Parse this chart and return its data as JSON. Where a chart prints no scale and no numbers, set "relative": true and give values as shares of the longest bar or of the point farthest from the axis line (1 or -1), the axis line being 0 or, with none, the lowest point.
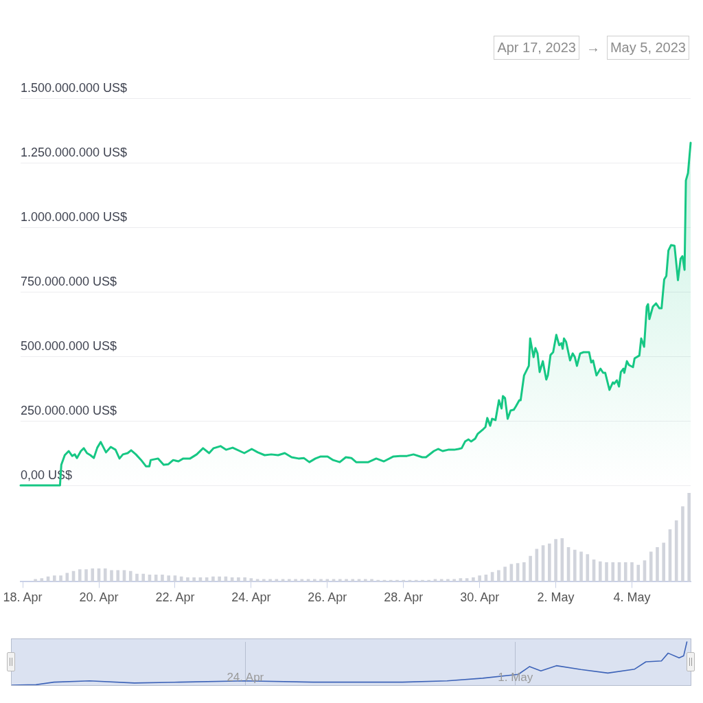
{
  "chart_data": [
    {
      "type": "area",
      "annotations": [
        "Apr 17, 2023",
        "→",
        "May 5, 2023"
      ],
      "color": "#16c784",
      "xlim": [
        "2023-04-17T22:40",
        "2023-05-05T13:00"
      ],
      "ylim": [
        0,
        1500000000
      ],
      "yticks": [
        {
          "value": 0,
          "label": "0,00 US$"
        },
        {
          "value": 250000000,
          "label": "250.000.000 US$"
        },
        {
          "value": 500000000,
          "label": "500.000.000 US$"
        },
        {
          "value": 750000000,
          "label": "750.000.000 US$"
        },
        {
          "value": 1000000000,
          "label": "1.000.000.000 US$"
        },
        {
          "value": 1250000000,
          "label": "1.250.000.000 US$"
        },
        {
          "value": 1500000000,
          "label": "1.500.000.000 US$"
        }
      ],
      "grid": "y",
      "marker": "none",
      "tick_labels": "y",
      "x": [
        "2023-04-17T22:40",
        "2023-04-18T23:30",
        "2023-04-19T00:20",
        "2023-04-19T02:30",
        "2023-04-19T05:00",
        "2023-04-19T07:10",
        "2023-04-19T08:50",
        "2023-04-19T10:10",
        "2023-04-19T12:40",
        "2023-04-19T14:30",
        "2023-04-19T16:30",
        "2023-04-19T18:40",
        "2023-04-19T20:50",
        "2023-04-19T23:00",
        "2023-04-20T01:10",
        "2023-04-20T04:30",
        "2023-04-20T07:30",
        "2023-04-20T10:30",
        "2023-04-20T13:00",
        "2023-04-20T15:10",
        "2023-04-20T18:10",
        "2023-04-20T20:20",
        "2023-04-20T23:20",
        "2023-04-21T02:40",
        "2023-04-21T05:40",
        "2023-04-21T07:50",
        "2023-04-21T08:40",
        "2023-04-21T13:20",
        "2023-04-21T16:50",
        "2023-04-21T19:50",
        "2023-04-21T22:50",
        "2023-04-22T02:10",
        "2023-04-22T05:10",
        "2023-04-22T09:30",
        "2023-04-22T13:40",
        "2023-04-22T17:40",
        "2023-04-22T21:30",
        "2023-04-23T00:20",
        "2023-04-23T04:40",
        "2023-04-23T08:10",
        "2023-04-23T12:20",
        "2023-04-23T19:40",
        "2023-04-24T00:20",
        "2023-04-24T04:10",
        "2023-04-24T08:30",
        "2023-04-24T12:40",
        "2023-04-24T17:00",
        "2023-04-24T21:10",
        "2023-04-25T01:30",
        "2023-04-25T05:50",
        "2023-04-25T09:10",
        "2023-04-25T12:40",
        "2023-04-25T16:30",
        "2023-04-25T19:50",
        "2023-04-26T00:10",
        "2023-04-26T03:40",
        "2023-04-26T07:50",
        "2023-04-26T11:40",
        "2023-04-26T15:10",
        "2023-04-26T18:10",
        "2023-04-26T21:30",
        "2023-04-27T01:50",
        "2023-04-27T06:50",
        "2023-04-27T11:40",
        "2023-04-27T17:40",
        "2023-04-27T21:50",
        "2023-04-28T02:10",
        "2023-04-28T06:20",
        "2023-04-28T11:50",
        "2023-04-28T14:10",
        "2023-04-28T19:10",
        "2023-04-28T21:50",
        "2023-04-29T00:40",
        "2023-04-29T04:10",
        "2023-04-29T08:00",
        "2023-04-29T10:40",
        "2023-04-29T12:40",
        "2023-04-29T14:50",
        "2023-04-29T17:00",
        "2023-04-29T18:40",
        "2023-04-29T21:10",
        "2023-04-29T22:50",
        "2023-04-30T02:20",
        "2023-04-30T03:40",
        "2023-04-30T04:50",
        "2023-04-30T06:40",
        "2023-04-30T07:50",
        "2023-04-30T10:00",
        "2023-04-30T12:10",
        "2023-04-30T13:50",
        "2023-04-30T14:40",
        "2023-04-30T16:00",
        "2023-04-30T17:40",
        "2023-04-30T19:30",
        "2023-04-30T21:30",
        "2023-04-30T22:50",
        "2023-05-01T01:00",
        "2023-05-01T01:50",
        "2023-05-01T04:00",
        "2023-05-01T07:00",
        "2023-05-01T07:50",
        "2023-05-01T09:10",
        "2023-05-01T10:00",
        "2023-05-01T11:10",
        "2023-05-01T12:30",
        "2023-05-01T13:50",
        "2023-05-01T15:50",
        "2023-05-01T18:00",
        "2023-05-01T19:00",
        "2023-05-01T20:40",
        "2023-05-01T22:20",
        "2023-05-02T00:20",
        "2023-05-02T02:10",
        "2023-05-02T03:30",
        "2023-05-02T04:20",
        "2023-05-02T05:10",
        "2023-05-02T06:30",
        "2023-05-02T09:00",
        "2023-05-02T10:40",
        "2023-05-02T12:00",
        "2023-05-02T13:20",
        "2023-05-02T15:20",
        "2023-05-02T17:30",
        "2023-05-02T21:00",
        "2023-05-02T22:20",
        "2023-05-02T23:30",
        "2023-05-03T01:40",
        "2023-05-03T04:10",
        "2023-05-03T05:50",
        "2023-05-03T07:10",
        "2023-05-03T09:50",
        "2023-05-03T12:00",
        "2023-05-03T12:50",
        "2023-05-03T14:30",
        "2023-05-03T15:50",
        "2023-05-03T17:00",
        "2023-05-03T18:40",
        "2023-05-03T19:10",
        "2023-05-03T20:50",
        "2023-05-03T22:10",
        "2023-05-04T00:40",
        "2023-05-04T01:40",
        "2023-05-04T04:40",
        "2023-05-04T05:50",
        "2023-05-04T07:40",
        "2023-05-04T09:20",
        "2023-05-04T10:10",
        "2023-05-04T11:00",
        "2023-05-04T13:10",
        "2023-05-04T15:10",
        "2023-05-04T17:20",
        "2023-05-04T18:40",
        "2023-05-04T20:20",
        "2023-05-04T21:40",
        "2023-05-04T23:00",
        "2023-05-05T00:40",
        "2023-05-05T02:50",
        "2023-05-05T03:40",
        "2023-05-05T05:00",
        "2023-05-05T06:40",
        "2023-05-05T07:50",
        "2023-05-05T09:10",
        "2023-05-05T10:00",
        "2023-05-05T11:20",
        "2023-05-05T13:00"
      ],
      "values": [
        0,
        0,
        80000000,
        117000000,
        133000000,
        114000000,
        120000000,
        106000000,
        133000000,
        144000000,
        125000000,
        117000000,
        106000000,
        146000000,
        168000000,
        128000000,
        149000000,
        138000000,
        104000000,
        120000000,
        125000000,
        136000000,
        120000000,
        98000000,
        74000000,
        74000000,
        98000000,
        104000000,
        80000000,
        82000000,
        98000000,
        93000000,
        104000000,
        104000000,
        120000000,
        144000000,
        125000000,
        144000000,
        152000000,
        138000000,
        146000000,
        125000000,
        141000000,
        128000000,
        117000000,
        120000000,
        117000000,
        125000000,
        109000000,
        104000000,
        106000000,
        90000000,
        104000000,
        112000000,
        112000000,
        98000000,
        90000000,
        109000000,
        106000000,
        90000000,
        90000000,
        90000000,
        104000000,
        93000000,
        112000000,
        114000000,
        114000000,
        120000000,
        109000000,
        109000000,
        133000000,
        141000000,
        133000000,
        138000000,
        138000000,
        141000000,
        144000000,
        170000000,
        178000000,
        170000000,
        181000000,
        200000000,
        218000000,
        226000000,
        261000000,
        231000000,
        258000000,
        253000000,
        330000000,
        298000000,
        346000000,
        338000000,
        258000000,
        290000000,
        293000000,
        306000000,
        330000000,
        330000000,
        426000000,
        463000000,
        569000000,
        524000000,
        497000000,
        532000000,
        511000000,
        439000000,
        481000000,
        410000000,
        426000000,
        505000000,
        516000000,
        583000000,
        543000000,
        551000000,
        529000000,
        569000000,
        556000000,
        484000000,
        511000000,
        497000000,
        463000000,
        511000000,
        516000000,
        516000000,
        476000000,
        484000000,
        426000000,
        452000000,
        436000000,
        436000000,
        370000000,
        399000000,
        394000000,
        407000000,
        383000000,
        439000000,
        452000000,
        436000000,
        481000000,
        466000000,
        458000000,
        492000000,
        503000000,
        569000000,
        537000000,
        692000000,
        702000000,
        644000000,
        692000000,
        705000000,
        686000000,
        686000000,
        798000000,
        811000000,
        910000000,
        931000000,
        928000000,
        878000000,
        795000000,
        878000000,
        888000000,
        835000000,
        1181000000,
        1210000000,
        1327000000
      ]
    },
    {
      "type": "bar",
      "relative": true,
      "color": "#d1d4dc",
      "xlim": [
        "2023-04-17T22:40",
        "2023-05-05T13:00"
      ],
      "tick_labels": "x",
      "xticks": [
        {
          "value": "2023-04-18",
          "label": "18. Apr"
        },
        {
          "value": "2023-04-20",
          "label": "20. Apr"
        },
        {
          "value": "2023-04-22",
          "label": "22. Apr"
        },
        {
          "value": "2023-04-24",
          "label": "24. Apr"
        },
        {
          "value": "2023-04-26",
          "label": "26. Apr"
        },
        {
          "value": "2023-04-28",
          "label": "28. Apr"
        },
        {
          "value": "2023-04-30",
          "label": "30. Apr"
        },
        {
          "value": "2023-05-02",
          "label": "2. May"
        },
        {
          "value": "2023-05-04",
          "label": "4. May"
        }
      ],
      "x": [
        "2023-04-18T08:00",
        "2023-04-18T12:00",
        "2023-04-18T16:00",
        "2023-04-18T20:00",
        "2023-04-19T00:00",
        "2023-04-19T04:00",
        "2023-04-19T08:00",
        "2023-04-19T12:00",
        "2023-04-19T16:00",
        "2023-04-19T20:00",
        "2023-04-20T00:00",
        "2023-04-20T04:00",
        "2023-04-20T08:00",
        "2023-04-20T12:00",
        "2023-04-20T16:00",
        "2023-04-20T20:00",
        "2023-04-21T00:00",
        "2023-04-21T04:00",
        "2023-04-21T08:00",
        "2023-04-21T12:00",
        "2023-04-21T16:00",
        "2023-04-21T20:00",
        "2023-04-22T00:00",
        "2023-04-22T04:00",
        "2023-04-22T08:00",
        "2023-04-22T12:00",
        "2023-04-22T16:00",
        "2023-04-22T20:00",
        "2023-04-23T00:00",
        "2023-04-23T04:00",
        "2023-04-23T08:00",
        "2023-04-23T12:00",
        "2023-04-23T16:00",
        "2023-04-23T20:00",
        "2023-04-24T00:00",
        "2023-04-24T04:00",
        "2023-04-24T08:00",
        "2023-04-24T12:00",
        "2023-04-24T16:00",
        "2023-04-24T20:00",
        "2023-04-25T00:00",
        "2023-04-25T04:00",
        "2023-04-25T08:00",
        "2023-04-25T12:00",
        "2023-04-25T16:00",
        "2023-04-25T20:00",
        "2023-04-26T00:00",
        "2023-04-26T04:00",
        "2023-04-26T08:00",
        "2023-04-26T12:00",
        "2023-04-26T16:00",
        "2023-04-26T20:00",
        "2023-04-27T00:00",
        "2023-04-27T04:00",
        "2023-04-27T08:00",
        "2023-04-27T12:00",
        "2023-04-27T16:00",
        "2023-04-27T20:00",
        "2023-04-28T00:00",
        "2023-04-28T04:00",
        "2023-04-28T08:00",
        "2023-04-28T12:00",
        "2023-04-28T16:00",
        "2023-04-28T20:00",
        "2023-04-29T00:00",
        "2023-04-29T04:00",
        "2023-04-29T08:00",
        "2023-04-29T12:00",
        "2023-04-29T16:00",
        "2023-04-29T20:00",
        "2023-04-30T00:00",
        "2023-04-30T04:00",
        "2023-04-30T08:00",
        "2023-04-30T12:00",
        "2023-04-30T16:00",
        "2023-04-30T20:00",
        "2023-05-01T00:00",
        "2023-05-01T04:00",
        "2023-05-01T08:00",
        "2023-05-01T12:00",
        "2023-05-01T16:00",
        "2023-05-01T20:00",
        "2023-05-02T00:00",
        "2023-05-02T04:00",
        "2023-05-02T08:00",
        "2023-05-02T12:00",
        "2023-05-02T16:00",
        "2023-05-02T20:00",
        "2023-05-03T00:00",
        "2023-05-03T04:00",
        "2023-05-03T08:00",
        "2023-05-03T12:00",
        "2023-05-03T16:00",
        "2023-05-03T20:00",
        "2023-05-04T00:00",
        "2023-05-04T04:00",
        "2023-05-04T08:00",
        "2023-05-04T12:00",
        "2023-05-04T16:00",
        "2023-05-04T20:00",
        "2023-05-05T00:00",
        "2023-05-05T04:00",
        "2023-05-05T08:00",
        "2023-05-05T12:00"
      ],
      "values": [
        0.03,
        0.04,
        0.06,
        0.07,
        0.07,
        0.1,
        0.12,
        0.14,
        0.14,
        0.15,
        0.15,
        0.15,
        0.13,
        0.13,
        0.13,
        0.12,
        0.09,
        0.09,
        0.08,
        0.08,
        0.08,
        0.07,
        0.07,
        0.06,
        0.05,
        0.05,
        0.05,
        0.05,
        0.06,
        0.06,
        0.06,
        0.05,
        0.05,
        0.05,
        0.04,
        0.03,
        0.03,
        0.03,
        0.03,
        0.03,
        0.03,
        0.03,
        0.03,
        0.03,
        0.03,
        0.03,
        0.03,
        0.03,
        0.03,
        0.03,
        0.03,
        0.03,
        0.03,
        0.03,
        0.02,
        0.02,
        0.02,
        0.02,
        0.02,
        0.02,
        0.02,
        0.02,
        0.02,
        0.03,
        0.03,
        0.03,
        0.03,
        0.04,
        0.04,
        0.05,
        0.07,
        0.08,
        0.11,
        0.13,
        0.17,
        0.2,
        0.21,
        0.22,
        0.29,
        0.37,
        0.41,
        0.43,
        0.48,
        0.49,
        0.39,
        0.36,
        0.34,
        0.31,
        0.25,
        0.23,
        0.22,
        0.22,
        0.22,
        0.22,
        0.22,
        0.19,
        0.24,
        0.34,
        0.39,
        0.44,
        0.59,
        0.69,
        0.85,
        1
      ]
    },
    {
      "type": "line",
      "relative": true,
      "color": "#3d63b8",
      "xlim": [
        "2023-04-17T22:40",
        "2023-05-05T13:00"
      ],
      "grid": "x",
      "marker": "none",
      "tick_labels": "x",
      "xticks": [
        {
          "value": "2023-04-24",
          "label": "24. Apr"
        },
        {
          "value": "2023-05-01",
          "label": "1. May"
        }
      ],
      "x": [
        "2023-04-17T22:40",
        "2023-04-18T13:50",
        "2023-04-19T01:00",
        "2023-04-19T23:10",
        "2023-04-21T03:00",
        "2023-04-22T06:50",
        "2023-04-23T23:50",
        "2023-04-25T18:10",
        "2023-04-28T01:40",
        "2023-04-29T05:30",
        "2023-04-30T03:40",
        "2023-05-01T01:50",
        "2023-05-01T08:50",
        "2023-05-01T15:50",
        "2023-05-02T01:30",
        "2023-05-02T16:50",
        "2023-05-03T09:30",
        "2023-05-04T02:10",
        "2023-05-04T09:10",
        "2023-05-04T18:50",
        "2023-05-04T23:00",
        "2023-05-05T05:50",
        "2023-05-05T08:40",
        "2023-05-05T10:40"
      ],
      "values": [
        0,
        0.01,
        0.07,
        0.1,
        0.05,
        0.07,
        0.1,
        0.07,
        0.07,
        0.1,
        0.16,
        0.25,
        0.43,
        0.33,
        0.45,
        0.36,
        0.28,
        0.37,
        0.54,
        0.56,
        0.74,
        0.63,
        0.68,
        1
      ]
    }
  ]
}
